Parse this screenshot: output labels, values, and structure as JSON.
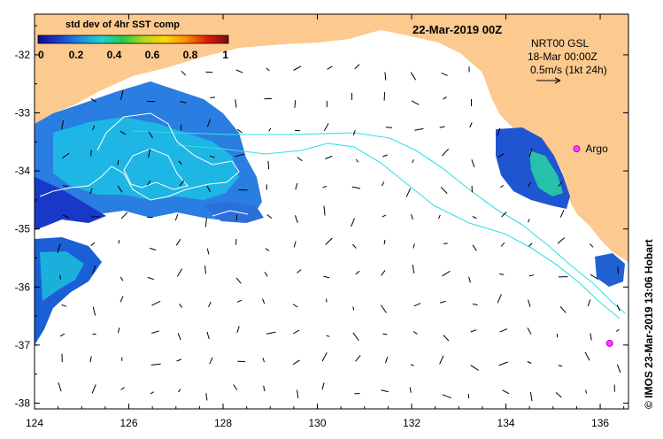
{
  "map": {
    "date_label": "22-Mar-2019 00Z",
    "colorbar": {
      "title": "std dev of 4hr SST comp",
      "ticks": [
        "0",
        "0.2",
        "0.4",
        "0.6",
        "0.8",
        "1"
      ],
      "colors": [
        "#0b0b8c",
        "#1b3fcf",
        "#1a8fe0",
        "#1ed2d2",
        "#29c84a",
        "#b6d91e",
        "#ffd800",
        "#ff8c00",
        "#e01b0b",
        "#7a0b0b"
      ]
    },
    "current_info": {
      "line1": "NRT00 GSL",
      "line2": "18-Mar 00:00Z",
      "line3": "0.5m/s (1kt 24h)"
    },
    "markers": [
      {
        "label": "Argo",
        "lon": 135.5,
        "lat": -33.62
      },
      {
        "label": "",
        "lon": 136.2,
        "lat": -36.97
      }
    ],
    "x_ticks": [
      "124",
      "126",
      "128",
      "130",
      "132",
      "134",
      "136"
    ],
    "y_ticks": [
      "-32",
      "-33",
      "-34",
      "-35",
      "-36",
      "-37",
      "-38"
    ],
    "lon_range": [
      124,
      136.6
    ],
    "lat_range": [
      -38.1,
      -31.3
    ],
    "credit": "© IMOS 23-Mar-2019 13:06 Hobart",
    "land_color": "#fcc98f",
    "contour_color": "#33e0e8"
  }
}
